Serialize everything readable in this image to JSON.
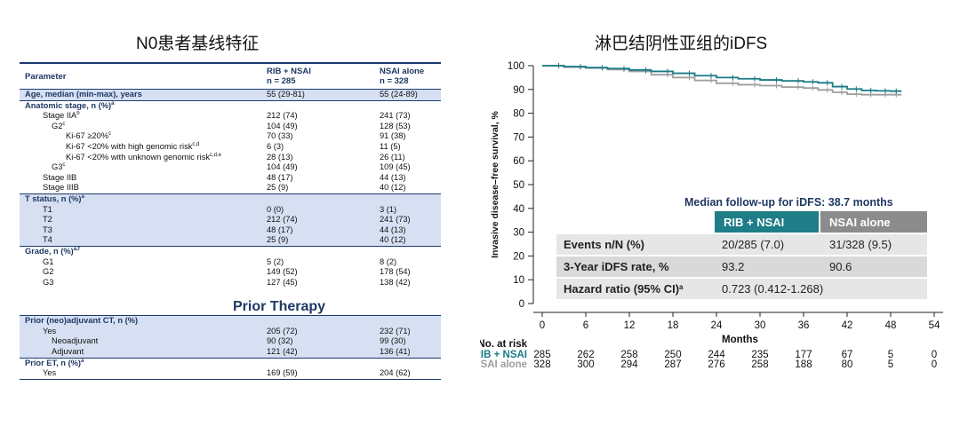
{
  "left_title": "N0患者基线特征",
  "right_title": "淋巴结阴性亚组的iDFS",
  "table": {
    "header": {
      "param": "Parameter",
      "col1": "RIB + NSAI",
      "col1_n": "n = 285",
      "col2": "NSAI alone",
      "col2_n": "n = 328"
    },
    "rows": [
      {
        "label": "Age, median (min-max), years",
        "sup": "",
        "v1": "55 (29-81)",
        "v2": "55 (24-89)",
        "indent": 0,
        "bold": true,
        "shade": true
      },
      {
        "label": "Anatomic stage, n (%)",
        "sup": "a",
        "v1": "",
        "v2": "",
        "indent": 0,
        "bold": true,
        "shade": false
      },
      {
        "label": "Stage IIA",
        "sup": "b",
        "v1": "212 (74)",
        "v2": "241 (73)",
        "indent": 1,
        "bold": false,
        "shade": false
      },
      {
        "label": "G2",
        "sup": "c",
        "v1": "104 (49)",
        "v2": "128 (53)",
        "indent": 2,
        "bold": false,
        "shade": false
      },
      {
        "label": "Ki-67 ≥20%",
        "sup": "c",
        "v1": "70 (33)",
        "v2": "91 (38)",
        "indent": 3,
        "bold": false,
        "shade": false
      },
      {
        "label": "Ki-67 <20% with high genomic risk",
        "sup": "c,d",
        "v1": "6 (3)",
        "v2": "11 (5)",
        "indent": 3,
        "bold": false,
        "shade": false
      },
      {
        "label": "Ki-67 <20% with unknown genomic risk",
        "sup": "c,d,e",
        "v1": "28 (13)",
        "v2": "26 (11)",
        "indent": 3,
        "bold": false,
        "shade": false
      },
      {
        "label": "G3",
        "sup": "c",
        "v1": "104 (49)",
        "v2": "109 (45)",
        "indent": 2,
        "bold": false,
        "shade": false
      },
      {
        "label": "Stage IIB",
        "sup": "",
        "v1": "48 (17)",
        "v2": "44 (13)",
        "indent": 1,
        "bold": false,
        "shade": false
      },
      {
        "label": "Stage IIIB",
        "sup": "",
        "v1": "25 (9)",
        "v2": "40 (12)",
        "indent": 1,
        "bold": false,
        "shade": false
      },
      {
        "label": "T status, n (%)",
        "sup": "a",
        "v1": "",
        "v2": "",
        "indent": 0,
        "bold": true,
        "shade": true
      },
      {
        "label": "T1",
        "sup": "",
        "v1": "0 (0)",
        "v2": "3 (1)",
        "indent": 1,
        "bold": false,
        "shade": true
      },
      {
        "label": "T2",
        "sup": "",
        "v1": "212 (74)",
        "v2": "241 (73)",
        "indent": 1,
        "bold": false,
        "shade": true
      },
      {
        "label": "T3",
        "sup": "",
        "v1": "48 (17)",
        "v2": "44 (13)",
        "indent": 1,
        "bold": false,
        "shade": true
      },
      {
        "label": "T4",
        "sup": "",
        "v1": "25 (9)",
        "v2": "40 (12)",
        "indent": 1,
        "bold": false,
        "shade": true
      },
      {
        "label": "Grade, n (%)",
        "sup": "a,f",
        "v1": "",
        "v2": "",
        "indent": 0,
        "bold": true,
        "shade": false
      },
      {
        "label": "G1",
        "sup": "",
        "v1": "5 (2)",
        "v2": "8 (2)",
        "indent": 1,
        "bold": false,
        "shade": false
      },
      {
        "label": "G2",
        "sup": "",
        "v1": "149 (52)",
        "v2": "178 (54)",
        "indent": 1,
        "bold": false,
        "shade": false
      },
      {
        "label": "G3",
        "sup": "",
        "v1": "127 (45)",
        "v2": "138 (42)",
        "indent": 1,
        "bold": false,
        "shade": false
      }
    ],
    "prior_title": "Prior Therapy",
    "prior_rows": [
      {
        "label": "Prior (neo)adjuvant CT, n (%)",
        "sup": "",
        "v1": "",
        "v2": "",
        "indent": 0,
        "bold": true,
        "shade": true
      },
      {
        "label": "Yes",
        "sup": "",
        "v1": "205 (72)",
        "v2": "232 (71)",
        "indent": 1,
        "bold": false,
        "shade": true
      },
      {
        "label": "Neoadjuvant",
        "sup": "",
        "v1": "90 (32)",
        "v2": "99 (30)",
        "indent": 2,
        "bold": false,
        "shade": true
      },
      {
        "label": "Adjuvant",
        "sup": "",
        "v1": "121 (42)",
        "v2": "136 (41)",
        "indent": 2,
        "bold": false,
        "shade": true
      },
      {
        "label": "Prior ET, n (%)",
        "sup": "a",
        "v1": "",
        "v2": "",
        "indent": 0,
        "bold": true,
        "shade": false
      },
      {
        "label": "Yes",
        "sup": "",
        "v1": "169 (59)",
        "v2": "204 (62)",
        "indent": 1,
        "bold": false,
        "shade": false
      }
    ]
  },
  "colors": {
    "rib": "#1a7a86",
    "nsai": "#9e9e9e",
    "navy": "#1f3864",
    "shade": "#d6e0f2",
    "inset_header_rib": "#1e7d87",
    "inset_header_nsai": "#8c8c8c",
    "inset_row": "#e6e6e6"
  },
  "chart_data": {
    "type": "line",
    "ylabel": "Invasive disease–free survival, %",
    "xlabel": "Months",
    "xlim": [
      0,
      54
    ],
    "ylim": [
      0,
      100
    ],
    "x_ticks": [
      0,
      6,
      12,
      18,
      24,
      30,
      36,
      42,
      48,
      54
    ],
    "y_ticks": [
      0,
      10,
      20,
      30,
      40,
      50,
      60,
      70,
      80,
      90,
      100
    ],
    "series": [
      {
        "name": "RIB + NSAI",
        "x": [
          0,
          3,
          6,
          9,
          12,
          15,
          18,
          21,
          24,
          27,
          30,
          33,
          36,
          38,
          40,
          42,
          44,
          46,
          48,
          49.5
        ],
        "y": [
          100,
          99.6,
          99.2,
          98.8,
          98.2,
          97.6,
          96.8,
          95.8,
          95.0,
          94.5,
          94.0,
          93.6,
          93.2,
          92.8,
          91.2,
          90.2,
          89.6,
          89.4,
          89.3,
          89.3
        ]
      },
      {
        "name": "NSAI alone",
        "x": [
          0,
          3,
          6,
          9,
          12,
          15,
          18,
          21,
          24,
          27,
          30,
          33,
          36,
          38,
          40,
          42,
          44,
          46,
          48,
          49.5
        ],
        "y": [
          100,
          99.4,
          99.0,
          98.4,
          97.6,
          96.2,
          95.0,
          93.8,
          92.6,
          92.0,
          91.6,
          91.0,
          90.6,
          89.8,
          88.8,
          88.0,
          87.8,
          87.8,
          87.8,
          87.8
        ]
      }
    ],
    "inset": {
      "title": "Median follow-up for iDFS: 38.7 months",
      "headers": [
        "RIB + NSAI",
        "NSAI alone"
      ],
      "rows": [
        {
          "label": "Events n/N (%)",
          "sup": "",
          "v1": "20/285 (7.0)",
          "v2": "31/328 (9.5)"
        },
        {
          "label": "3-Year iDFS rate, %",
          "sup": "",
          "v1": "93.2",
          "v2": "90.6"
        },
        {
          "label": "Hazard ratio (95% CI)",
          "sup": "a",
          "v1": "0.723 (0.412-1.268)",
          "v2": ""
        }
      ]
    },
    "at_risk": {
      "title": "No. at risk",
      "rows": [
        {
          "name": "RIB + NSAI",
          "values": [
            285,
            262,
            258,
            250,
            244,
            235,
            177,
            67,
            5,
            0
          ]
        },
        {
          "name": "NSAI alone",
          "values": [
            328,
            300,
            294,
            287,
            276,
            258,
            188,
            80,
            5,
            0
          ]
        }
      ]
    }
  }
}
